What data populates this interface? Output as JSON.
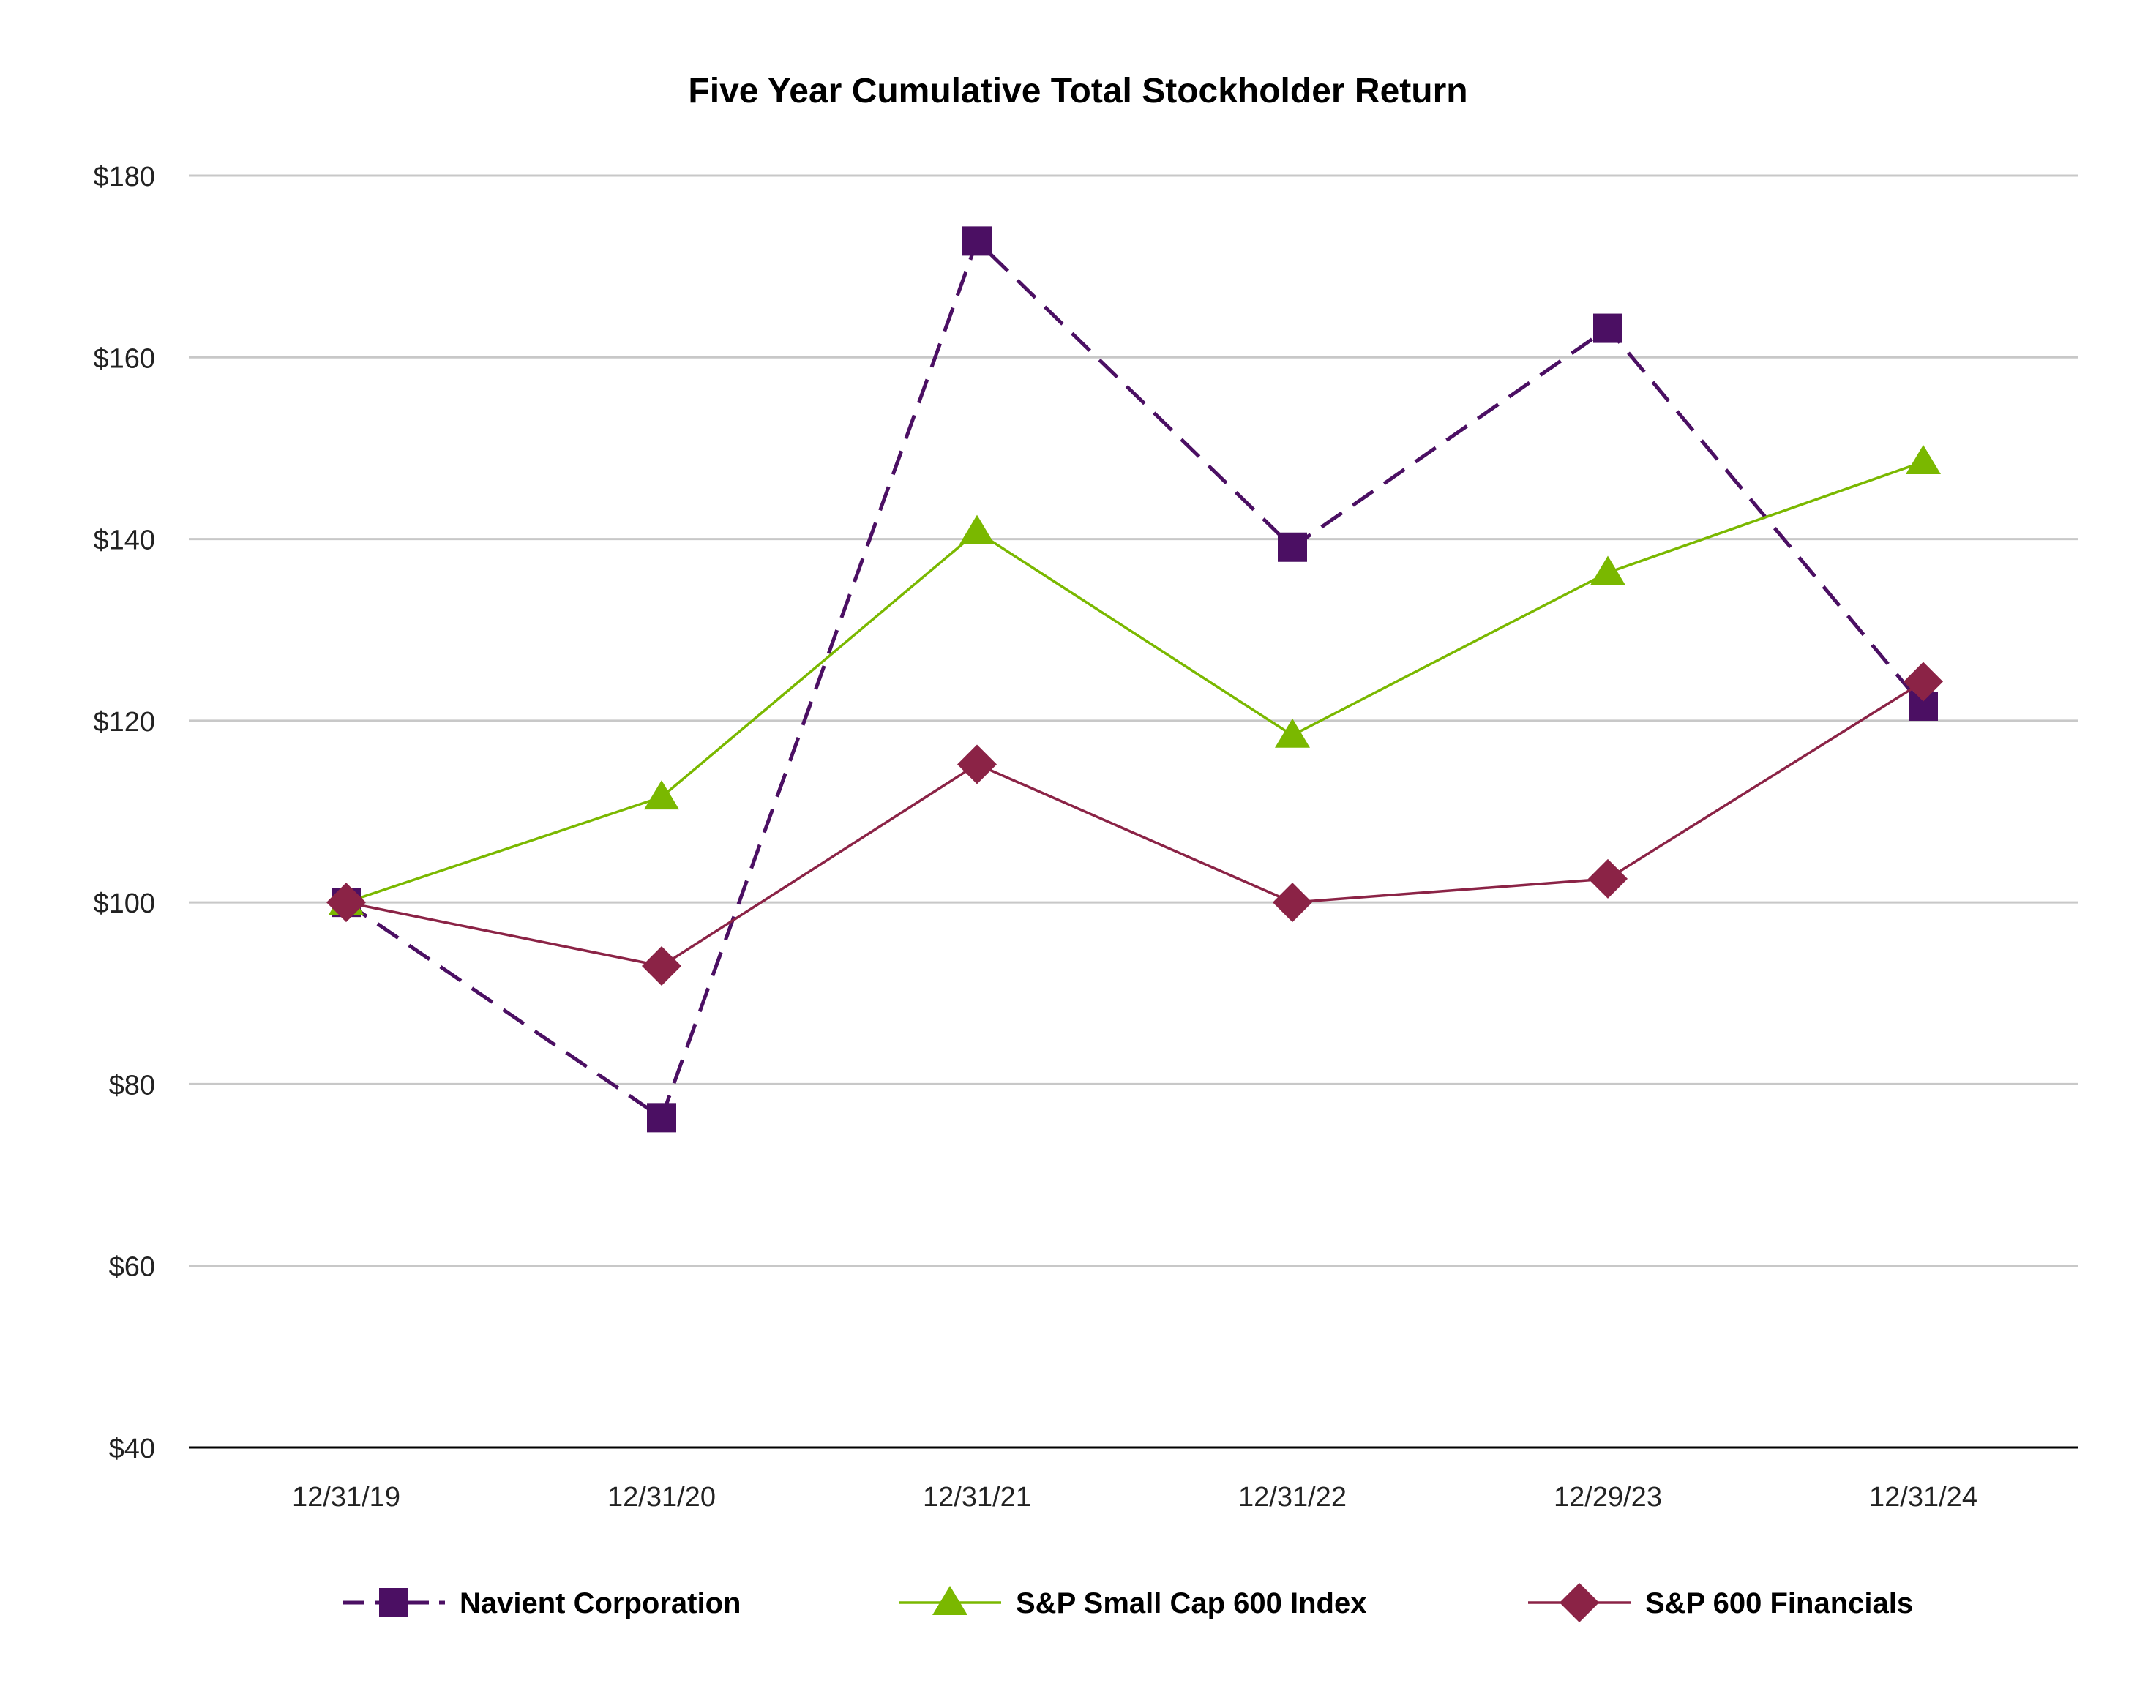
{
  "chart_data": {
    "type": "line",
    "title": "Five Year Cumulative Total Stockholder Return",
    "xlabel": "",
    "ylabel": "",
    "categories": [
      "12/31/19",
      "12/31/20",
      "12/31/21",
      "12/31/22",
      "12/29/23",
      "12/31/24"
    ],
    "ylim": [
      40,
      180
    ],
    "yticks": [
      40,
      60,
      80,
      100,
      120,
      140,
      160,
      180
    ],
    "ytick_labels": [
      "$40",
      "$60",
      "$80",
      "$100",
      "$120",
      "$140",
      "$160",
      "$180"
    ],
    "grid": true,
    "legend_position": "bottom",
    "series": [
      {
        "name": "Navient Corporation",
        "values": [
          100,
          76.3,
          172.8,
          139.1,
          163.2,
          121.6
        ],
        "color": "#4b0f63",
        "marker": "square",
        "line_style": "dashed"
      },
      {
        "name": "S&P Small Cap 600 Index",
        "values": [
          100,
          111.6,
          140.8,
          118.4,
          136.3,
          148.5
        ],
        "color": "#7ab800",
        "marker": "triangle",
        "line_style": "solid"
      },
      {
        "name": "S&P 600 Financials",
        "values": [
          100,
          93.0,
          115.2,
          100.0,
          102.6,
          124.3
        ],
        "color": "#8b2346",
        "marker": "diamond",
        "line_style": "solid"
      }
    ]
  }
}
